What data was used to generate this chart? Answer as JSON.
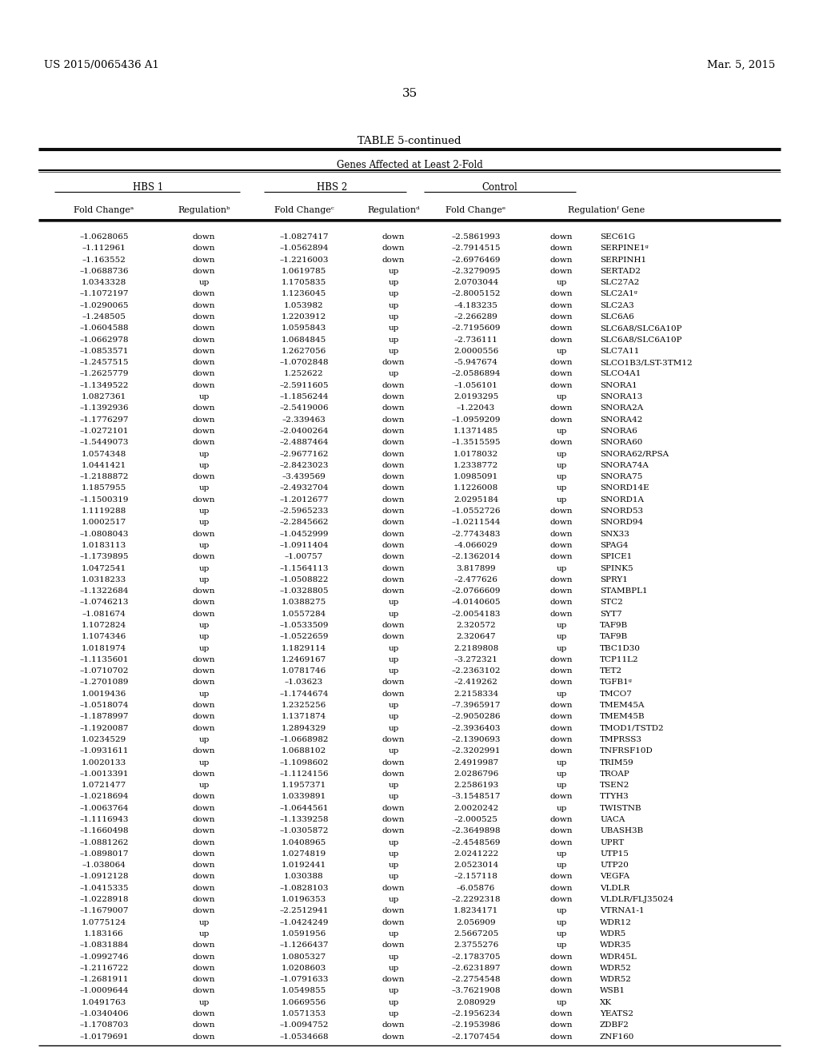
{
  "patent_left": "US 2015/0065436 A1",
  "patent_right": "Mar. 5, 2015",
  "page_number": "35",
  "table_title": "TABLE 5-continued",
  "group_header": "Genes Affected at Least 2-Fold",
  "col_groups": [
    "HBS 1",
    "HBS 2",
    "Control"
  ],
  "col_headers_a": "Fold Change",
  "col_headers_b": "Regulation",
  "col_sup": [
    "a",
    "b",
    "c",
    "d",
    "e",
    "f"
  ],
  "rows": [
    [
      "–1.0628065",
      "down",
      "–1.0827417",
      "down",
      "–2.5861993",
      "down",
      "SEC61G"
    ],
    [
      "–1.112961",
      "down",
      "–1.0562894",
      "down",
      "–2.7914515",
      "down",
      "SERPINE1ᵍ"
    ],
    [
      "–1.163552",
      "down",
      "–1.2216003",
      "down",
      "–2.6976469",
      "down",
      "SERPINH1"
    ],
    [
      "–1.0688736",
      "down",
      "1.0619785",
      "up",
      "–2.3279095",
      "down",
      "SERTAD2"
    ],
    [
      "1.0343328",
      "up",
      "1.1705835",
      "up",
      "2.0703044",
      "up",
      "SLC27A2"
    ],
    [
      "–1.1072197",
      "down",
      "1.1236045",
      "up",
      "–2.8005152",
      "down",
      "SLC2A1ᵍ"
    ],
    [
      "–1.0290065",
      "down",
      "1.053982",
      "up",
      "–4.183235",
      "down",
      "SLC2A3"
    ],
    [
      "–1.248505",
      "down",
      "1.2203912",
      "up",
      "–2.266289",
      "down",
      "SLC6A6"
    ],
    [
      "–1.0604588",
      "down",
      "1.0595843",
      "up",
      "–2.7195609",
      "down",
      "SLC6A8/SLC6A10P"
    ],
    [
      "–1.0662978",
      "down",
      "1.0684845",
      "up",
      "–2.736111",
      "down",
      "SLC6A8/SLC6A10P"
    ],
    [
      "–1.0853571",
      "down",
      "1.2627056",
      "up",
      "2.0000556",
      "up",
      "SLC7A11"
    ],
    [
      "–1.2457515",
      "down",
      "–1.0702848",
      "down",
      "–5.947674",
      "down",
      "SLCO1B3/LST-3TM12"
    ],
    [
      "–1.2625779",
      "down",
      "1.252622",
      "up",
      "–2.0586894",
      "down",
      "SLCO4A1"
    ],
    [
      "–1.1349522",
      "down",
      "–2.5911605",
      "down",
      "–1.056101",
      "down",
      "SNORA1"
    ],
    [
      "1.0827361",
      "up",
      "–1.1856244",
      "down",
      "2.0193295",
      "up",
      "SNORA13"
    ],
    [
      "–1.1392936",
      "down",
      "–2.5419006",
      "down",
      "–1.22043",
      "down",
      "SNORA2A"
    ],
    [
      "–1.1776297",
      "down",
      "–2.339463",
      "down",
      "–1.0959209",
      "down",
      "SNORA42"
    ],
    [
      "–1.0272101",
      "down",
      "–2.0400264",
      "down",
      "1.1371485",
      "up",
      "SNORA6"
    ],
    [
      "–1.5449073",
      "down",
      "–2.4887464",
      "down",
      "–1.3515595",
      "down",
      "SNORA60"
    ],
    [
      "1.0574348",
      "up",
      "–2.9677162",
      "down",
      "1.0178032",
      "up",
      "SNORA62/RPSA"
    ],
    [
      "1.0441421",
      "up",
      "–2.8423023",
      "down",
      "1.2338772",
      "up",
      "SNORA74A"
    ],
    [
      "–1.2188872",
      "down",
      "–3.439569",
      "down",
      "1.0985091",
      "up",
      "SNORA75"
    ],
    [
      "1.1857955",
      "up",
      "–2.4932704",
      "down",
      "1.1226008",
      "up",
      "SNORD14E"
    ],
    [
      "–1.1500319",
      "down",
      "–1.2012677",
      "down",
      "2.0295184",
      "up",
      "SNORD1A"
    ],
    [
      "1.1119288",
      "up",
      "–2.5965233",
      "down",
      "–1.0552726",
      "down",
      "SNORD53"
    ],
    [
      "1.0002517",
      "up",
      "–2.2845662",
      "down",
      "–1.0211544",
      "down",
      "SNORD94"
    ],
    [
      "–1.0808043",
      "down",
      "–1.0452999",
      "down",
      "–2.7743483",
      "down",
      "SNX33"
    ],
    [
      "1.0183113",
      "up",
      "–1.0911404",
      "down",
      "–4.066029",
      "down",
      "SPAG4"
    ],
    [
      "–1.1739895",
      "down",
      "–1.00757",
      "down",
      "–2.1362014",
      "down",
      "SPICE1"
    ],
    [
      "1.0472541",
      "up",
      "–1.1564113",
      "down",
      "3.817899",
      "up",
      "SPINK5"
    ],
    [
      "1.0318233",
      "up",
      "–1.0508822",
      "down",
      "–2.477626",
      "down",
      "SPRY1"
    ],
    [
      "–1.1322684",
      "down",
      "–1.0328805",
      "down",
      "–2.0766609",
      "down",
      "STAMBPL1"
    ],
    [
      "–1.0746213",
      "down",
      "1.0388275",
      "up",
      "–4.0140605",
      "down",
      "STC2"
    ],
    [
      "–1.081674",
      "down",
      "1.0557284",
      "up",
      "–2.0054183",
      "down",
      "SYT7"
    ],
    [
      "1.1072824",
      "up",
      "–1.0533509",
      "down",
      "2.320572",
      "up",
      "TAF9B"
    ],
    [
      "1.1074346",
      "up",
      "–1.0522659",
      "down",
      "2.320647",
      "up",
      "TAF9B"
    ],
    [
      "1.0181974",
      "up",
      "1.1829114",
      "up",
      "2.2189808",
      "up",
      "TBC1D30"
    ],
    [
      "–1.1135601",
      "down",
      "1.2469167",
      "up",
      "–3.272321",
      "down",
      "TCP11L2"
    ],
    [
      "–1.0710702",
      "down",
      "1.0781746",
      "up",
      "–2.2363102",
      "down",
      "TET2"
    ],
    [
      "–1.2701089",
      "down",
      "–1.03623",
      "down",
      "–2.419262",
      "down",
      "TGFB1ᵍ"
    ],
    [
      "1.0019436",
      "up",
      "–1.1744674",
      "down",
      "2.2158334",
      "up",
      "TMCO7"
    ],
    [
      "–1.0518074",
      "down",
      "1.2325256",
      "up",
      "–7.3965917",
      "down",
      "TMEM45A"
    ],
    [
      "–1.1878997",
      "down",
      "1.1371874",
      "up",
      "–2.9050286",
      "down",
      "TMEM45B"
    ],
    [
      "–1.1920087",
      "down",
      "1.2894329",
      "up",
      "–2.3936403",
      "down",
      "TMOD1/TSTD2"
    ],
    [
      "1.0234529",
      "up",
      "–1.0668982",
      "down",
      "–2.1390693",
      "down",
      "TMPRSS3"
    ],
    [
      "–1.0931611",
      "down",
      "1.0688102",
      "up",
      "–2.3202991",
      "down",
      "TNFRSF10D"
    ],
    [
      "1.0020133",
      "up",
      "–1.1098602",
      "down",
      "2.4919987",
      "up",
      "TRIM59"
    ],
    [
      "–1.0013391",
      "down",
      "–1.1124156",
      "down",
      "2.0286796",
      "up",
      "TROAP"
    ],
    [
      "1.0721477",
      "up",
      "1.1957371",
      "up",
      "2.2586193",
      "up",
      "TSEN2"
    ],
    [
      "–1.0218694",
      "down",
      "1.0339891",
      "up",
      "–3.1548517",
      "down",
      "TTYH3"
    ],
    [
      "–1.0063764",
      "down",
      "–1.0644561",
      "down",
      "2.0020242",
      "up",
      "TWISTNB"
    ],
    [
      "–1.1116943",
      "down",
      "–1.1339258",
      "down",
      "–2.000525",
      "down",
      "UACA"
    ],
    [
      "–1.1660498",
      "down",
      "–1.0305872",
      "down",
      "–2.3649898",
      "down",
      "UBASH3B"
    ],
    [
      "–1.0881262",
      "down",
      "1.0408965",
      "up",
      "–2.4548569",
      "down",
      "UPRT"
    ],
    [
      "–1.0898017",
      "down",
      "1.0274819",
      "up",
      "2.0241222",
      "up",
      "UTP15"
    ],
    [
      "–1.038064",
      "down",
      "1.0192441",
      "up",
      "2.0523014",
      "up",
      "UTP20"
    ],
    [
      "–1.0912128",
      "down",
      "1.030388",
      "up",
      "–2.157118",
      "down",
      "VEGFA"
    ],
    [
      "–1.0415335",
      "down",
      "–1.0828103",
      "down",
      "–6.05876",
      "down",
      "VLDLR"
    ],
    [
      "–1.0228918",
      "down",
      "1.0196353",
      "up",
      "–2.2292318",
      "down",
      "VLDLR/FLJ35024"
    ],
    [
      "–1.1679007",
      "down",
      "–2.2512941",
      "down",
      "1.8234171",
      "up",
      "VTRNA1-1"
    ],
    [
      "1.0775124",
      "up",
      "–1.0424249",
      "down",
      "2.056909",
      "up",
      "WDR12"
    ],
    [
      "1.183166",
      "up",
      "1.0591956",
      "up",
      "2.5667205",
      "up",
      "WDR5"
    ],
    [
      "–1.0831884",
      "down",
      "–1.1266437",
      "down",
      "2.3755276",
      "up",
      "WDR35"
    ],
    [
      "–1.0992746",
      "down",
      "1.0805327",
      "up",
      "–2.1783705",
      "down",
      "WDR45L"
    ],
    [
      "–1.2116722",
      "down",
      "1.0208603",
      "up",
      "–2.6231897",
      "down",
      "WDR52"
    ],
    [
      "–1.2681911",
      "down",
      "–1.0791633",
      "down",
      "–2.2754548",
      "down",
      "WDR52"
    ],
    [
      "–1.0009644",
      "down",
      "1.0549855",
      "up",
      "–3.7621908",
      "down",
      "WSB1"
    ],
    [
      "1.0491763",
      "up",
      "1.0669556",
      "up",
      "2.080929",
      "up",
      "XK"
    ],
    [
      "–1.0340406",
      "down",
      "1.0571353",
      "up",
      "–2.1956234",
      "down",
      "YEATS2"
    ],
    [
      "–1.1708703",
      "down",
      "–1.0094752",
      "down",
      "–2.1953986",
      "down",
      "ZDBF2"
    ],
    [
      "–1.0179691",
      "down",
      "–1.0534668",
      "down",
      "–2.1707454",
      "down",
      "ZNF160"
    ]
  ],
  "bg_color": "#ffffff",
  "text_color": "#000000",
  "line_color": "#000000"
}
